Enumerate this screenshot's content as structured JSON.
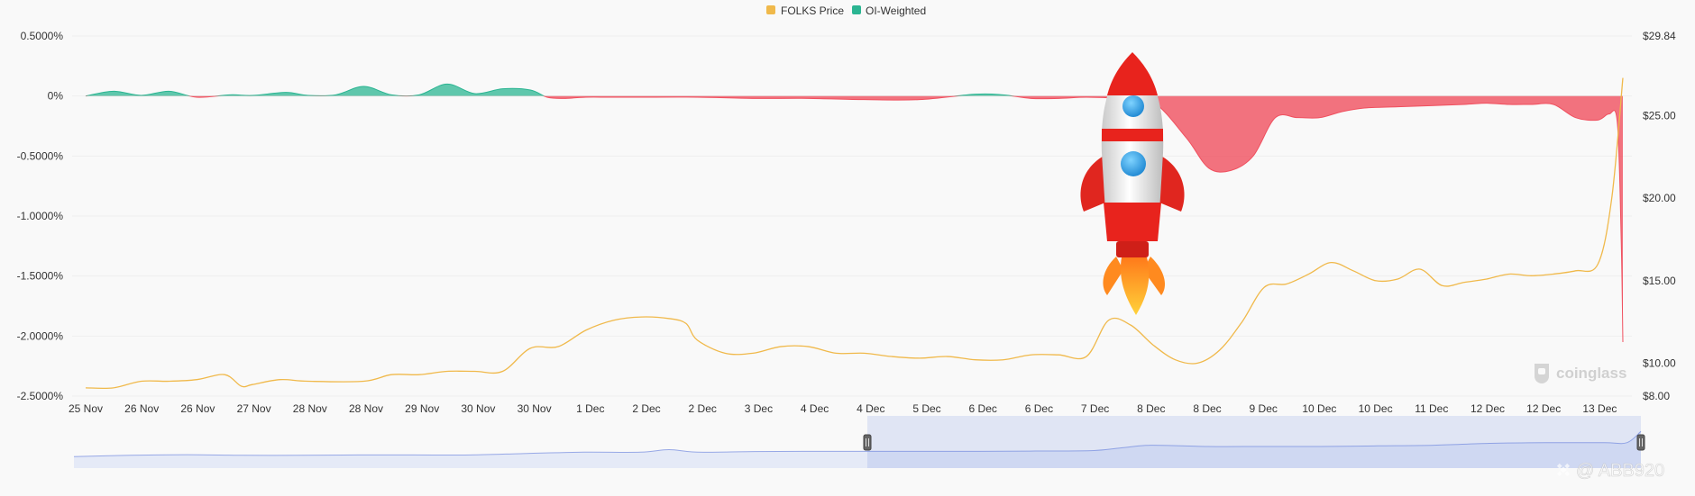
{
  "chart_data": {
    "type": "area",
    "legend": [
      {
        "name": "FOLKS Price",
        "color": "#f0b94b"
      },
      {
        "name": "OI-Weighted",
        "color": "#2bb592"
      }
    ],
    "legend_placement": "top-center",
    "x_tick_labels": [
      "25 Nov",
      "26 Nov",
      "26 Nov",
      "27 Nov",
      "28 Nov",
      "28 Nov",
      "29 Nov",
      "30 Nov",
      "30 Nov",
      "1 Dec",
      "2 Dec",
      "2 Dec",
      "3 Dec",
      "4 Dec",
      "4 Dec",
      "5 Dec",
      "6 Dec",
      "6 Dec",
      "7 Dec",
      "8 Dec",
      "8 Dec",
      "9 Dec",
      "10 Dec",
      "10 Dec",
      "11 Dec",
      "12 Dec",
      "12 Dec",
      "13 Dec"
    ],
    "y_left": {
      "label": "",
      "ticks": [
        "0.5000%",
        "0%",
        "-0.5000%",
        "-1.0000%",
        "-1.5000%",
        "-2.0000%",
        "-2.5000%"
      ],
      "range": [
        -2.5,
        0.5
      ]
    },
    "y_right": {
      "label": "",
      "ticks": [
        "$29.84",
        "$25.00",
        "$20.00",
        "$15.00",
        "$10.00",
        "$8.00"
      ],
      "range": [
        8.0,
        29.84
      ]
    },
    "positive_color": "#2bb592",
    "negative_color": "#f0505f",
    "grid": true,
    "series": [
      {
        "name": "OI-Weighted",
        "axis": "left",
        "unit": "%",
        "x": [
          0,
          0.5,
          1,
          1.5,
          2,
          2.6,
          3,
          3.6,
          4,
          4.5,
          5,
          5.5,
          6,
          6.5,
          7,
          7.5,
          8,
          8.3,
          8.6,
          9,
          9.4,
          9.8,
          10,
          11,
          12,
          13,
          14,
          15,
          16,
          16.5,
          17,
          17.5,
          18,
          18.6,
          19.2,
          19.8,
          20.2,
          20.6,
          21,
          21.4,
          21.8,
          22.2,
          22.6,
          23,
          23.6,
          24.2,
          24.8,
          25.2,
          25.6,
          26,
          26.4,
          26.8,
          27.2,
          27.4,
          27.55,
          27.62,
          27.65
        ],
        "values": [
          0,
          0.04,
          0.005,
          0.04,
          -0.01,
          0.01,
          0.005,
          0.03,
          0.005,
          0.01,
          0.08,
          0.01,
          0.01,
          0.1,
          0.02,
          0.06,
          0.05,
          -0.01,
          -0.02,
          -0.01,
          -0.01,
          -0.01,
          -0.01,
          -0.01,
          -0.02,
          -0.02,
          -0.03,
          -0.03,
          0.015,
          0.01,
          -0.02,
          -0.02,
          -0.01,
          -0.02,
          -0.05,
          -0.35,
          -0.6,
          -0.62,
          -0.5,
          -0.18,
          -0.18,
          -0.18,
          -0.13,
          -0.1,
          -0.09,
          -0.08,
          -0.07,
          -0.06,
          -0.07,
          -0.07,
          -0.07,
          -0.18,
          -0.2,
          -0.15,
          -0.22,
          -1.2,
          -2.05
        ]
      },
      {
        "name": "FOLKS Price",
        "axis": "right",
        "unit": "$",
        "x": [
          0,
          0.5,
          1,
          1.5,
          2,
          2.5,
          2.8,
          3,
          3.5,
          4,
          5,
          5.5,
          6,
          6.5,
          7,
          7.5,
          8,
          8.5,
          9,
          9.5,
          10,
          10.5,
          10.8,
          11,
          11.5,
          12,
          12.5,
          13,
          13.5,
          14,
          14.5,
          15,
          15.5,
          16,
          16.5,
          17,
          17.5,
          18,
          18.4,
          18.8,
          19.2,
          19.6,
          20,
          20.4,
          20.8,
          21.2,
          21.6,
          22,
          22.4,
          22.8,
          23.2,
          23.6,
          24,
          24.4,
          24.8,
          25.2,
          25.6,
          26,
          26.4,
          26.8,
          27.2,
          27.45,
          27.65
        ],
        "values": [
          8.5,
          8.5,
          8.9,
          8.9,
          9.0,
          9.3,
          8.6,
          8.7,
          9.0,
          8.9,
          8.9,
          9.3,
          9.3,
          9.5,
          9.5,
          9.5,
          10.9,
          11.0,
          12.0,
          12.6,
          12.8,
          12.7,
          12.4,
          11.4,
          10.6,
          10.6,
          11.0,
          11.0,
          10.6,
          10.6,
          10.4,
          10.3,
          10.4,
          10.2,
          10.2,
          10.5,
          10.5,
          10.4,
          12.6,
          12.3,
          11.1,
          10.2,
          10.0,
          10.8,
          12.5,
          14.6,
          14.8,
          15.4,
          16.1,
          15.6,
          15.0,
          15.1,
          15.7,
          14.7,
          14.9,
          15.1,
          15.4,
          15.3,
          15.4,
          15.6,
          16.0,
          20.0,
          27.3
        ]
      },
      {
        "name": "navigator",
        "axis": "navigator",
        "x": [
          0,
          1,
          2,
          3,
          4,
          5,
          6,
          7,
          8,
          9,
          10,
          10.5,
          11,
          12,
          13,
          14,
          15,
          16,
          17,
          18,
          18.5,
          19,
          20,
          21,
          22,
          23,
          24,
          25,
          26,
          27,
          27.4,
          27.65
        ],
        "values": [
          0.2,
          0.3,
          0.35,
          0.3,
          0.3,
          0.33,
          0.33,
          0.33,
          0.45,
          0.55,
          0.55,
          0.75,
          0.55,
          0.6,
          0.62,
          0.62,
          0.62,
          0.62,
          0.64,
          0.68,
          0.9,
          1.1,
          1.0,
          1.0,
          1.0,
          1.05,
          1.1,
          1.25,
          1.3,
          1.3,
          1.3,
          2.2
        ]
      }
    ],
    "navigator_selection": [
      14,
      27.65
    ]
  },
  "watermark": {
    "brand": "coinglass",
    "author": "@ ABB920"
  },
  "colors": {
    "grid": "#eeeeee",
    "navigator_line": "#97a8e6",
    "navigator_fill": "#d6def6"
  }
}
